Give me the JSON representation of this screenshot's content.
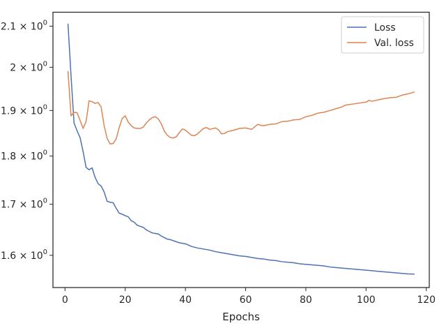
{
  "chart_data": {
    "type": "line",
    "title": "",
    "xlabel": "Epochs",
    "ylabel": "",
    "y_scale": "log",
    "xlim": [
      -4,
      121
    ],
    "ylim": [
      1.54,
      2.135
    ],
    "x_ticks": [
      0,
      20,
      40,
      60,
      80,
      100,
      120
    ],
    "x_tick_labels": [
      "0",
      "20",
      "40",
      "60",
      "80",
      "100",
      "120"
    ],
    "y_ticks": [
      {
        "value": 1.6,
        "mantissa": "1.6"
      },
      {
        "value": 1.7,
        "mantissa": "1.7"
      },
      {
        "value": 1.8,
        "mantissa": "1.8"
      },
      {
        "value": 1.9,
        "mantissa": "1.9"
      },
      {
        "value": 2.0,
        "mantissa": "2"
      },
      {
        "value": 2.1,
        "mantissa": "2.1"
      }
    ],
    "y_tick_base": "10",
    "y_tick_exponent": "0",
    "grid": false,
    "legend_position": "top-right",
    "series": [
      {
        "name": "Loss",
        "color": "#4c72b0",
        "points": [
          [
            1,
            2.105
          ],
          [
            2,
            1.98
          ],
          [
            3,
            1.872
          ],
          [
            4,
            1.855
          ],
          [
            5,
            1.84
          ],
          [
            6,
            1.81
          ],
          [
            7,
            1.776
          ],
          [
            8,
            1.771
          ],
          [
            9,
            1.775
          ],
          [
            10,
            1.755
          ],
          [
            11,
            1.742
          ],
          [
            12,
            1.737
          ],
          [
            13,
            1.725
          ],
          [
            14,
            1.706
          ],
          [
            15,
            1.704
          ],
          [
            16,
            1.703
          ],
          [
            17,
            1.692
          ],
          [
            18,
            1.682
          ],
          [
            19,
            1.68
          ],
          [
            20,
            1.677
          ],
          [
            21,
            1.675
          ],
          [
            22,
            1.667
          ],
          [
            23,
            1.664
          ],
          [
            24,
            1.658
          ],
          [
            25,
            1.656
          ],
          [
            26,
            1.654
          ],
          [
            27,
            1.649
          ],
          [
            28,
            1.646
          ],
          [
            29,
            1.643
          ],
          [
            30,
            1.642
          ],
          [
            31,
            1.641
          ],
          [
            32,
            1.637
          ],
          [
            33,
            1.634
          ],
          [
            34,
            1.631
          ],
          [
            35,
            1.63
          ],
          [
            36,
            1.628
          ],
          [
            37,
            1.626
          ],
          [
            38,
            1.624
          ],
          [
            39,
            1.623
          ],
          [
            40,
            1.622
          ],
          [
            42,
            1.617
          ],
          [
            44,
            1.614
          ],
          [
            46,
            1.612
          ],
          [
            48,
            1.61
          ],
          [
            50,
            1.607
          ],
          [
            52,
            1.605
          ],
          [
            54,
            1.603
          ],
          [
            56,
            1.601
          ],
          [
            58,
            1.599
          ],
          [
            60,
            1.598
          ],
          [
            62,
            1.596
          ],
          [
            64,
            1.594
          ],
          [
            66,
            1.593
          ],
          [
            68,
            1.591
          ],
          [
            70,
            1.59
          ],
          [
            72,
            1.588
          ],
          [
            74,
            1.587
          ],
          [
            76,
            1.586
          ],
          [
            78,
            1.584
          ],
          [
            80,
            1.583
          ],
          [
            82,
            1.582
          ],
          [
            84,
            1.581
          ],
          [
            86,
            1.58
          ],
          [
            88,
            1.578
          ],
          [
            90,
            1.577
          ],
          [
            92,
            1.576
          ],
          [
            94,
            1.575
          ],
          [
            96,
            1.574
          ],
          [
            98,
            1.573
          ],
          [
            100,
            1.572
          ],
          [
            102,
            1.571
          ],
          [
            104,
            1.57
          ],
          [
            106,
            1.569
          ],
          [
            108,
            1.568
          ],
          [
            110,
            1.567
          ],
          [
            112,
            1.566
          ],
          [
            114,
            1.565
          ],
          [
            116,
            1.5648
          ]
        ]
      },
      {
        "name": "Val. loss",
        "color": "#dd8452",
        "points": [
          [
            1,
            1.99
          ],
          [
            2,
            1.888
          ],
          [
            3,
            1.896
          ],
          [
            4,
            1.895
          ],
          [
            5,
            1.878
          ],
          [
            6,
            1.86
          ],
          [
            7,
            1.875
          ],
          [
            8,
            1.922
          ],
          [
            9,
            1.92
          ],
          [
            10,
            1.916
          ],
          [
            11,
            1.918
          ],
          [
            12,
            1.908
          ],
          [
            13,
            1.866
          ],
          [
            14,
            1.838
          ],
          [
            15,
            1.826
          ],
          [
            16,
            1.827
          ],
          [
            17,
            1.837
          ],
          [
            18,
            1.862
          ],
          [
            19,
            1.882
          ],
          [
            20,
            1.888
          ],
          [
            21,
            1.874
          ],
          [
            22,
            1.866
          ],
          [
            23,
            1.861
          ],
          [
            24,
            1.86
          ],
          [
            25,
            1.86
          ],
          [
            26,
            1.863
          ],
          [
            27,
            1.872
          ],
          [
            28,
            1.879
          ],
          [
            29,
            1.884
          ],
          [
            30,
            1.886
          ],
          [
            31,
            1.881
          ],
          [
            32,
            1.87
          ],
          [
            33,
            1.854
          ],
          [
            34,
            1.845
          ],
          [
            35,
            1.84
          ],
          [
            36,
            1.839
          ],
          [
            37,
            1.842
          ],
          [
            38,
            1.851
          ],
          [
            39,
            1.859
          ],
          [
            40,
            1.856
          ],
          [
            42,
            1.845
          ],
          [
            43,
            1.844
          ],
          [
            44,
            1.848
          ],
          [
            46,
            1.86
          ],
          [
            47,
            1.862
          ],
          [
            48,
            1.858
          ],
          [
            50,
            1.861
          ],
          [
            51,
            1.857
          ],
          [
            52,
            1.848
          ],
          [
            53,
            1.849
          ],
          [
            54,
            1.853
          ],
          [
            56,
            1.856
          ],
          [
            58,
            1.86
          ],
          [
            60,
            1.861
          ],
          [
            62,
            1.858
          ],
          [
            64,
            1.869
          ],
          [
            65,
            1.867
          ],
          [
            66,
            1.866
          ],
          [
            68,
            1.869
          ],
          [
            70,
            1.87
          ],
          [
            72,
            1.875
          ],
          [
            74,
            1.876
          ],
          [
            76,
            1.879
          ],
          [
            78,
            1.88
          ],
          [
            80,
            1.886
          ],
          [
            82,
            1.889
          ],
          [
            84,
            1.894
          ],
          [
            86,
            1.896
          ],
          [
            88,
            1.9
          ],
          [
            90,
            1.904
          ],
          [
            92,
            1.908
          ],
          [
            93,
            1.912
          ],
          [
            94,
            1.913
          ],
          [
            96,
            1.915
          ],
          [
            98,
            1.917
          ],
          [
            100,
            1.919
          ],
          [
            101,
            1.923
          ],
          [
            102,
            1.921
          ],
          [
            104,
            1.924
          ],
          [
            106,
            1.927
          ],
          [
            108,
            1.929
          ],
          [
            110,
            1.93
          ],
          [
            112,
            1.935
          ],
          [
            114,
            1.938
          ],
          [
            116,
            1.942
          ]
        ]
      }
    ]
  }
}
